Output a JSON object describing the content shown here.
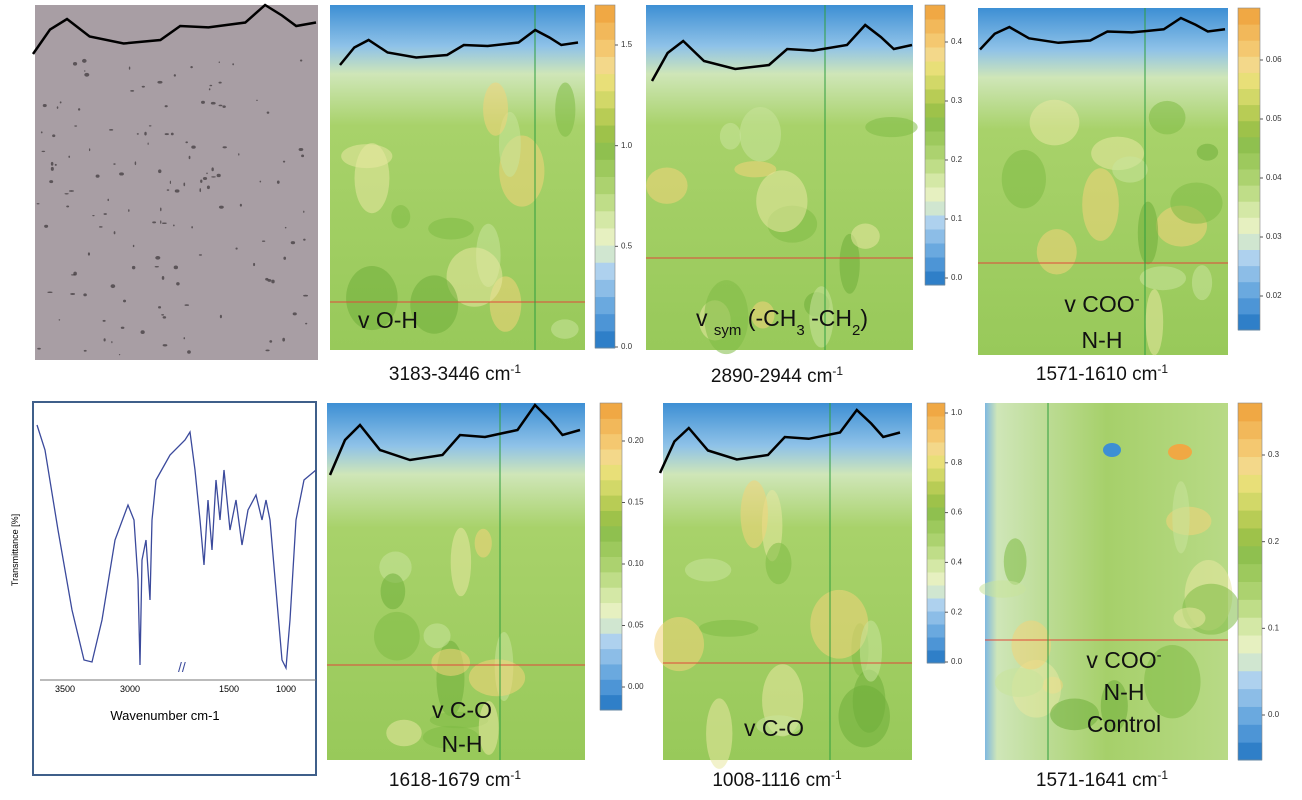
{
  "panels": [
    {
      "colorbar_ticks": [
        "1.5",
        "1.0",
        "0.5",
        "0.0"
      ],
      "label_lines": [
        [
          "v O-H"
        ]
      ],
      "caption": {
        "range": "3183-3446 cm",
        "exponent": "-1"
      }
    },
    {
      "colorbar_ticks": [
        "0.4",
        "0.3",
        "0.2",
        "0.1",
        "0.0"
      ],
      "label_lines": [
        [
          "v ",
          "sym",
          " (-CH",
          "3",
          " -CH",
          "2",
          ")"
        ]
      ],
      "caption": {
        "range": "2890-2944 cm",
        "exponent": "-1"
      }
    },
    {
      "colorbar_ticks": [
        "0.06",
        "0.05",
        "0.04",
        "0.03",
        "0.02"
      ],
      "label_lines": [
        [
          "v COO",
          "-"
        ],
        [
          "N-H"
        ]
      ],
      "caption": {
        "range": "1571-1610 cm",
        "exponent": "-1"
      }
    },
    {
      "colorbar_ticks": [
        "0.20",
        "0.15",
        "0.10",
        "0.05",
        "0.00"
      ],
      "label_lines": [
        [
          "v C-O"
        ],
        [
          "N-H"
        ]
      ],
      "caption": {
        "range": "1618-1679 cm",
        "exponent": "-1"
      }
    },
    {
      "colorbar_ticks": [
        "1.0",
        "0.8",
        "0.6",
        "0.4",
        "0.2",
        "0.0"
      ],
      "label_lines": [
        [
          "v C-O"
        ]
      ],
      "caption": {
        "range": "1008-1116 cm",
        "exponent": "-1"
      }
    },
    {
      "colorbar_ticks": [
        "0.3",
        "0.2",
        "0.1",
        "0.0"
      ],
      "label_lines": [
        [
          "v COO",
          "-"
        ],
        [
          "N-H"
        ],
        [
          "Control"
        ]
      ],
      "caption": {
        "range": "1571-1641 cm",
        "exponent": "-1"
      }
    }
  ],
  "spectrum": {
    "y_label": "Transmittance [%]",
    "x_label": "Wavenumber cm-1",
    "x_ticks": [
      "3500",
      "3000",
      "1500",
      "1000"
    ]
  }
}
